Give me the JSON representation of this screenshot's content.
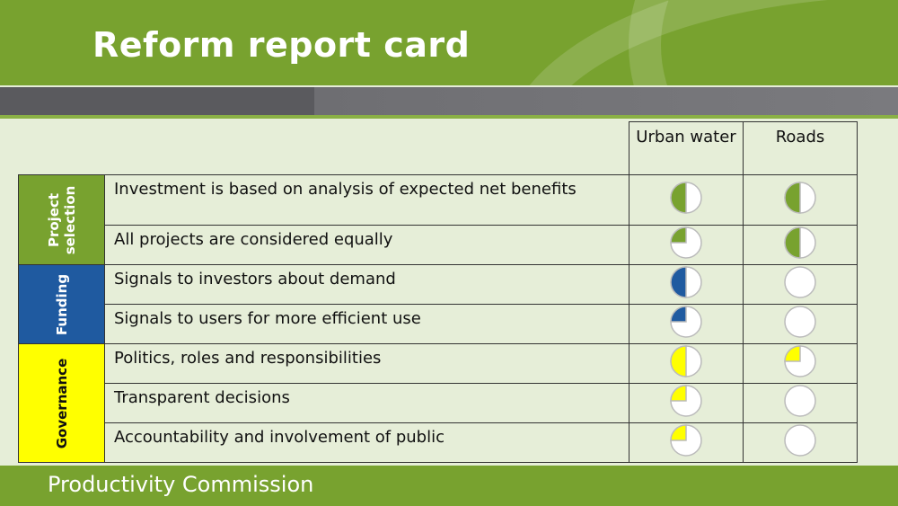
{
  "title": "Reform report card",
  "columns": [
    "Urban water",
    "Roads"
  ],
  "categories": [
    {
      "label": "Project selection",
      "lines": [
        "Project",
        "selection"
      ],
      "color": "#78a22f",
      "text_color": "#ffffff",
      "rows": 2
    },
    {
      "label": "Funding",
      "lines": [
        "Funding"
      ],
      "color": "#1f5aa0",
      "text_color": "#ffffff",
      "rows": 2
    },
    {
      "label": "Governance",
      "lines": [
        "Governance"
      ],
      "color": "#ffff00",
      "text_color": "#111111",
      "rows": 3
    }
  ],
  "rows": [
    {
      "label": "Investment is based on analysis of expected net benefits",
      "category": 0,
      "urban_water": 0.5,
      "roads": 0.5
    },
    {
      "label": "All projects are considered equally",
      "category": 0,
      "urban_water": 0.25,
      "roads": 0.5
    },
    {
      "label": "Signals to investors about demand",
      "category": 1,
      "urban_water": 0.5,
      "roads": 0
    },
    {
      "label": "Signals to users for more efficient use",
      "category": 1,
      "urban_water": 0.25,
      "roads": 0
    },
    {
      "label": "Politics, roles and responsibilities",
      "category": 2,
      "urban_water": 0.5,
      "roads": 0.25
    },
    {
      "label": "Transparent decisions",
      "category": 2,
      "urban_water": 0.25,
      "roads": 0
    },
    {
      "label": "Accountability and involvement of public",
      "category": 2,
      "urban_water": 0.25,
      "roads": 0
    }
  ],
  "footer": "Productivity Commission"
}
